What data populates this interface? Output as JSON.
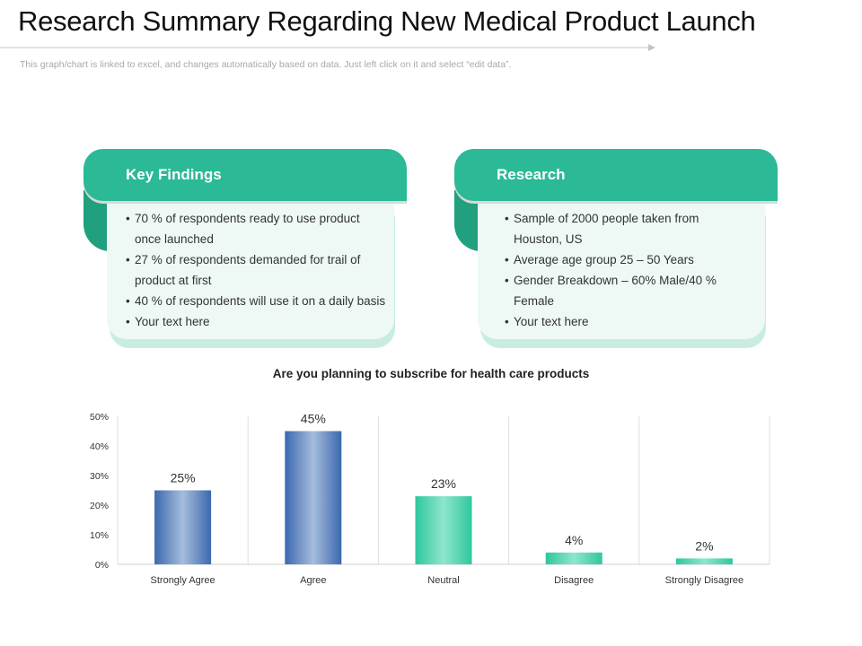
{
  "title": "Research Summary Regarding New Medical Product Launch",
  "note": "This graph/chart is linked to excel, and changes automatically based on data. Just left click on it and select “edit data”.",
  "colors": {
    "teal": "#2bb996",
    "teal_dark": "#20a07e",
    "blue_bar": "#3f6db3",
    "green_bar": "#2ec79d"
  },
  "key_findings": {
    "title": "Key Findings",
    "items": [
      "70 % of respondents ready to use product once launched",
      "27 % of respondents demanded for trail of product at first",
      "40 % of respondents will use it on a daily basis",
      "Your text here"
    ]
  },
  "research": {
    "title": "Research",
    "items": [
      "Sample of 2000 people taken from Houston, US",
      "Average age group 25 – 50 Years",
      "Gender Breakdown – 60% Male/40 % Female",
      "Your text here"
    ]
  },
  "chart_data": {
    "type": "bar",
    "title": "Are you planning to subscribe for health care products",
    "categories": [
      "Strongly Agree",
      "Agree",
      "Neutral",
      "Disagree",
      "Strongly Disagree"
    ],
    "values": [
      25,
      45,
      23,
      4,
      2
    ],
    "data_labels": [
      "25%",
      "45%",
      "23%",
      "4%",
      "2%"
    ],
    "bar_colors": [
      "blue",
      "blue",
      "green",
      "green",
      "green"
    ],
    "yticks": [
      "0%",
      "10%",
      "20%",
      "30%",
      "40%",
      "50%"
    ],
    "ylim": [
      0,
      50
    ],
    "grid": "vertical separators",
    "legend": "none"
  }
}
